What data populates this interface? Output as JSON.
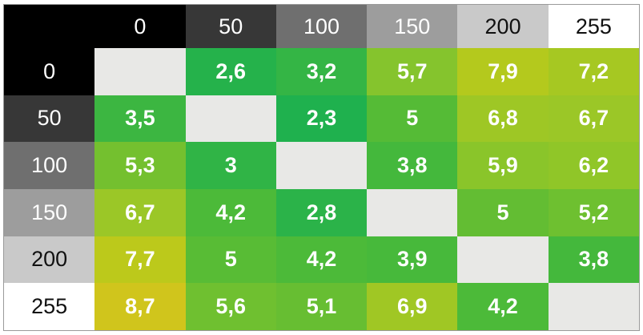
{
  "matrix": {
    "corner": {
      "bg": "#000000"
    },
    "blank_bg": "#E8E8E6",
    "col_headers": [
      {
        "label": "0",
        "bg": "#000000",
        "fg": "#FFFFFF"
      },
      {
        "label": "50",
        "bg": "#373737",
        "fg": "#FFFFFF"
      },
      {
        "label": "100",
        "bg": "#6F6F6F",
        "fg": "#FFFFFF"
      },
      {
        "label": "150",
        "bg": "#9D9D9D",
        "fg": "#FFFFFF"
      },
      {
        "label": "200",
        "bg": "#C9C9C9",
        "fg": "#111111"
      },
      {
        "label": "255",
        "bg": "#FFFFFF",
        "fg": "#111111"
      }
    ],
    "rows": [
      {
        "header": {
          "label": "0",
          "bg": "#000000",
          "fg": "#FFFFFF"
        },
        "cells": [
          {
            "label": "",
            "bg": "#E8E8E6"
          },
          {
            "label": "2,6",
            "bg": "#25B24B"
          },
          {
            "label": "3,2",
            "bg": "#34B545"
          },
          {
            "label": "5,7",
            "bg": "#85C42D"
          },
          {
            "label": "7,9",
            "bg": "#B4C91D"
          },
          {
            "label": "7,2",
            "bg": "#A6C822"
          }
        ]
      },
      {
        "header": {
          "label": "50",
          "bg": "#373737",
          "fg": "#FFFFFF"
        },
        "cells": [
          {
            "label": "3,5",
            "bg": "#3CB641"
          },
          {
            "label": "",
            "bg": "#E8E8E6"
          },
          {
            "label": "2,3",
            "bg": "#1FB14E"
          },
          {
            "label": "5",
            "bg": "#55BB36"
          },
          {
            "label": "6,8",
            "bg": "#9EC725"
          },
          {
            "label": "6,7",
            "bg": "#9BC727"
          }
        ]
      },
      {
        "header": {
          "label": "100",
          "bg": "#6F6F6F",
          "fg": "#FFFFFF"
        },
        "cells": [
          {
            "label": "5,3",
            "bg": "#74C02F"
          },
          {
            "label": "3",
            "bg": "#30B446"
          },
          {
            "label": "",
            "bg": "#E8E8E6"
          },
          {
            "label": "3,8",
            "bg": "#44B83C"
          },
          {
            "label": "5,9",
            "bg": "#8AC52A"
          },
          {
            "label": "6,2",
            "bg": "#90C628"
          }
        ]
      },
      {
        "header": {
          "label": "150",
          "bg": "#9D9D9D",
          "fg": "#FFFFFF"
        },
        "cells": [
          {
            "label": "6,7",
            "bg": "#9BC727"
          },
          {
            "label": "4,2",
            "bg": "#4CBA39"
          },
          {
            "label": "2,8",
            "bg": "#2BB349"
          },
          {
            "label": "",
            "bg": "#E8E8E6"
          },
          {
            "label": "5",
            "bg": "#63BD33"
          },
          {
            "label": "5,2",
            "bg": "#6EC030"
          }
        ]
      },
      {
        "header": {
          "label": "200",
          "bg": "#C9C9C9",
          "fg": "#111111"
        },
        "cells": [
          {
            "label": "7,7",
            "bg": "#BCC91B"
          },
          {
            "label": "5",
            "bg": "#58BC35"
          },
          {
            "label": "4,2",
            "bg": "#4CBA39"
          },
          {
            "label": "3,9",
            "bg": "#47B93B"
          },
          {
            "label": "",
            "bg": "#E8E8E6"
          },
          {
            "label": "3,8",
            "bg": "#44B83C"
          }
        ]
      },
      {
        "header": {
          "label": "255",
          "bg": "#FFFFFF",
          "fg": "#111111"
        },
        "cells": [
          {
            "label": "8,7",
            "bg": "#D0C51C"
          },
          {
            "label": "5,6",
            "bg": "#6FC030"
          },
          {
            "label": "5,1",
            "bg": "#67BE32"
          },
          {
            "label": "6,9",
            "bg": "#A0C724"
          },
          {
            "label": "4,2",
            "bg": "#4CBA39"
          },
          {
            "label": "",
            "bg": "#E8E8E6"
          }
        ]
      }
    ]
  },
  "chart_data": {
    "type": "heatmap",
    "title": "",
    "xlabel": "",
    "ylabel": "",
    "x_categories": [
      0,
      50,
      100,
      150,
      200,
      255
    ],
    "y_categories": [
      0,
      50,
      100,
      150,
      200,
      255
    ],
    "values": [
      [
        null,
        2.6,
        3.2,
        5.7,
        7.9,
        7.2
      ],
      [
        3.5,
        null,
        2.3,
        5.0,
        6.8,
        6.7
      ],
      [
        5.3,
        3.0,
        null,
        3.8,
        5.9,
        6.2
      ],
      [
        6.7,
        4.2,
        2.8,
        null,
        5.0,
        5.2
      ],
      [
        7.7,
        5.0,
        4.2,
        3.9,
        null,
        3.8
      ],
      [
        8.7,
        5.6,
        5.1,
        6.9,
        4.2,
        null
      ]
    ],
    "decimal_separator": ",",
    "value_range": [
      2.3,
      8.7
    ],
    "colorscale": {
      "low_color": "#1FB14E",
      "high_color": "#D0C51C",
      "diagonal_blank_color": "#E8E8E6"
    },
    "header_colorscale": "grayscale matching header value 0-255",
    "legend": "none",
    "grid": "off"
  }
}
